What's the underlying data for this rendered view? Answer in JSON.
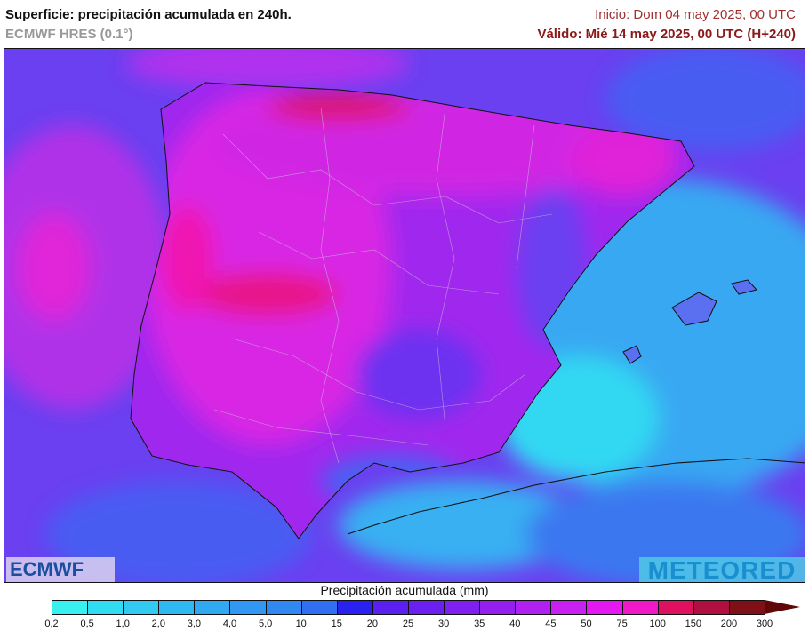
{
  "header": {
    "title": "Superficie: precipitación acumulada en 240h.",
    "model": "ECMWF HRES (0.1°)",
    "init": "Inicio: Dom 04 may 2025, 00 UTC",
    "valid": "Válido: Mié 14 may 2025, 00 UTC (H+240)"
  },
  "map": {
    "region": "Iberian Peninsula",
    "logos": {
      "left": "ECMWF",
      "right": "METEORED"
    }
  },
  "legend": {
    "title": "Precipitación acumulada (mm)",
    "labels": [
      "0,2",
      "0,5",
      "1,0",
      "2,0",
      "3,0",
      "4,0",
      "5,0",
      "10",
      "15",
      "20",
      "25",
      "30",
      "35",
      "40",
      "45",
      "50",
      "75",
      "100",
      "150",
      "200",
      "300"
    ],
    "colors": [
      "#38f0f0",
      "#30dcf2",
      "#30caf2",
      "#30b8f2",
      "#30a8f2",
      "#3098f2",
      "#3088f0",
      "#3070f0",
      "#2a20f0",
      "#5a20f0",
      "#6c20f0",
      "#8020f0",
      "#9420f0",
      "#b020f0",
      "#c820f0",
      "#e418f0",
      "#f018c8",
      "#e01060",
      "#b01040",
      "#801018"
    ],
    "overflow_color": "#600808"
  }
}
